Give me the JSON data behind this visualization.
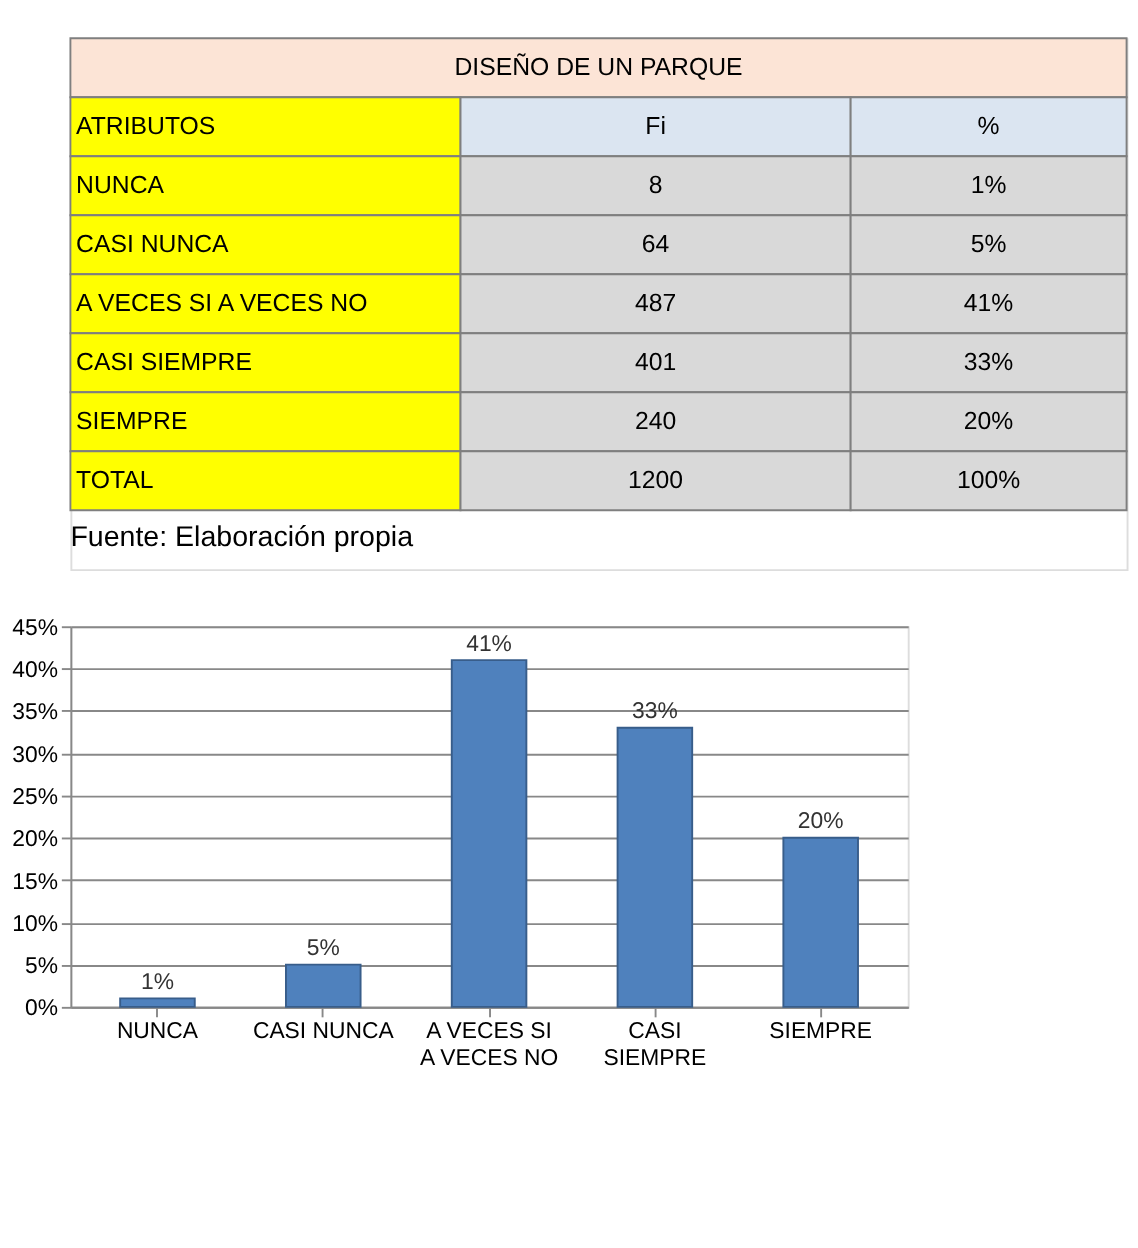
{
  "chart_data": [
    {
      "type": "other",
      "title": "DISEÑO DE UN PARQUE",
      "annotations": [
        "ATRIBUTOS",
        "Fi",
        "%",
        "NUNCA",
        "8",
        "1%",
        "CASI NUNCA",
        "64",
        "5%",
        "A VECES SI A VECES NO",
        "487",
        "41%",
        "CASI SIEMPRE",
        "401",
        "33%",
        "SIEMPRE",
        "240",
        "20%",
        "TOTAL",
        "1200",
        "100%",
        "Fuente: Elaboración propia"
      ]
    },
    {
      "type": "bar",
      "categories": [
        "NUNCA",
        "CASI NUNCA",
        "A VECES SI A VECES NO",
        "CASI SIEMPRE",
        "SIEMPRE"
      ],
      "values": [
        1,
        5,
        41,
        33,
        20
      ],
      "value_labels": [
        "1%",
        "5%",
        "41%",
        "33%",
        "20%"
      ],
      "color": "#4f81bd",
      "ylim": [
        0,
        45
      ],
      "yticks": [
        {
          "value": 0,
          "label": "0%"
        },
        {
          "value": 5,
          "label": "5%"
        },
        {
          "value": 10,
          "label": "10%"
        },
        {
          "value": 15,
          "label": "15%"
        },
        {
          "value": 20,
          "label": "20%"
        },
        {
          "value": 25,
          "label": "25%"
        },
        {
          "value": 30,
          "label": "30%"
        },
        {
          "value": 35,
          "label": "35%"
        },
        {
          "value": 40,
          "label": "40%"
        },
        {
          "value": 45,
          "label": "45%"
        }
      ],
      "grid": true
    }
  ]
}
